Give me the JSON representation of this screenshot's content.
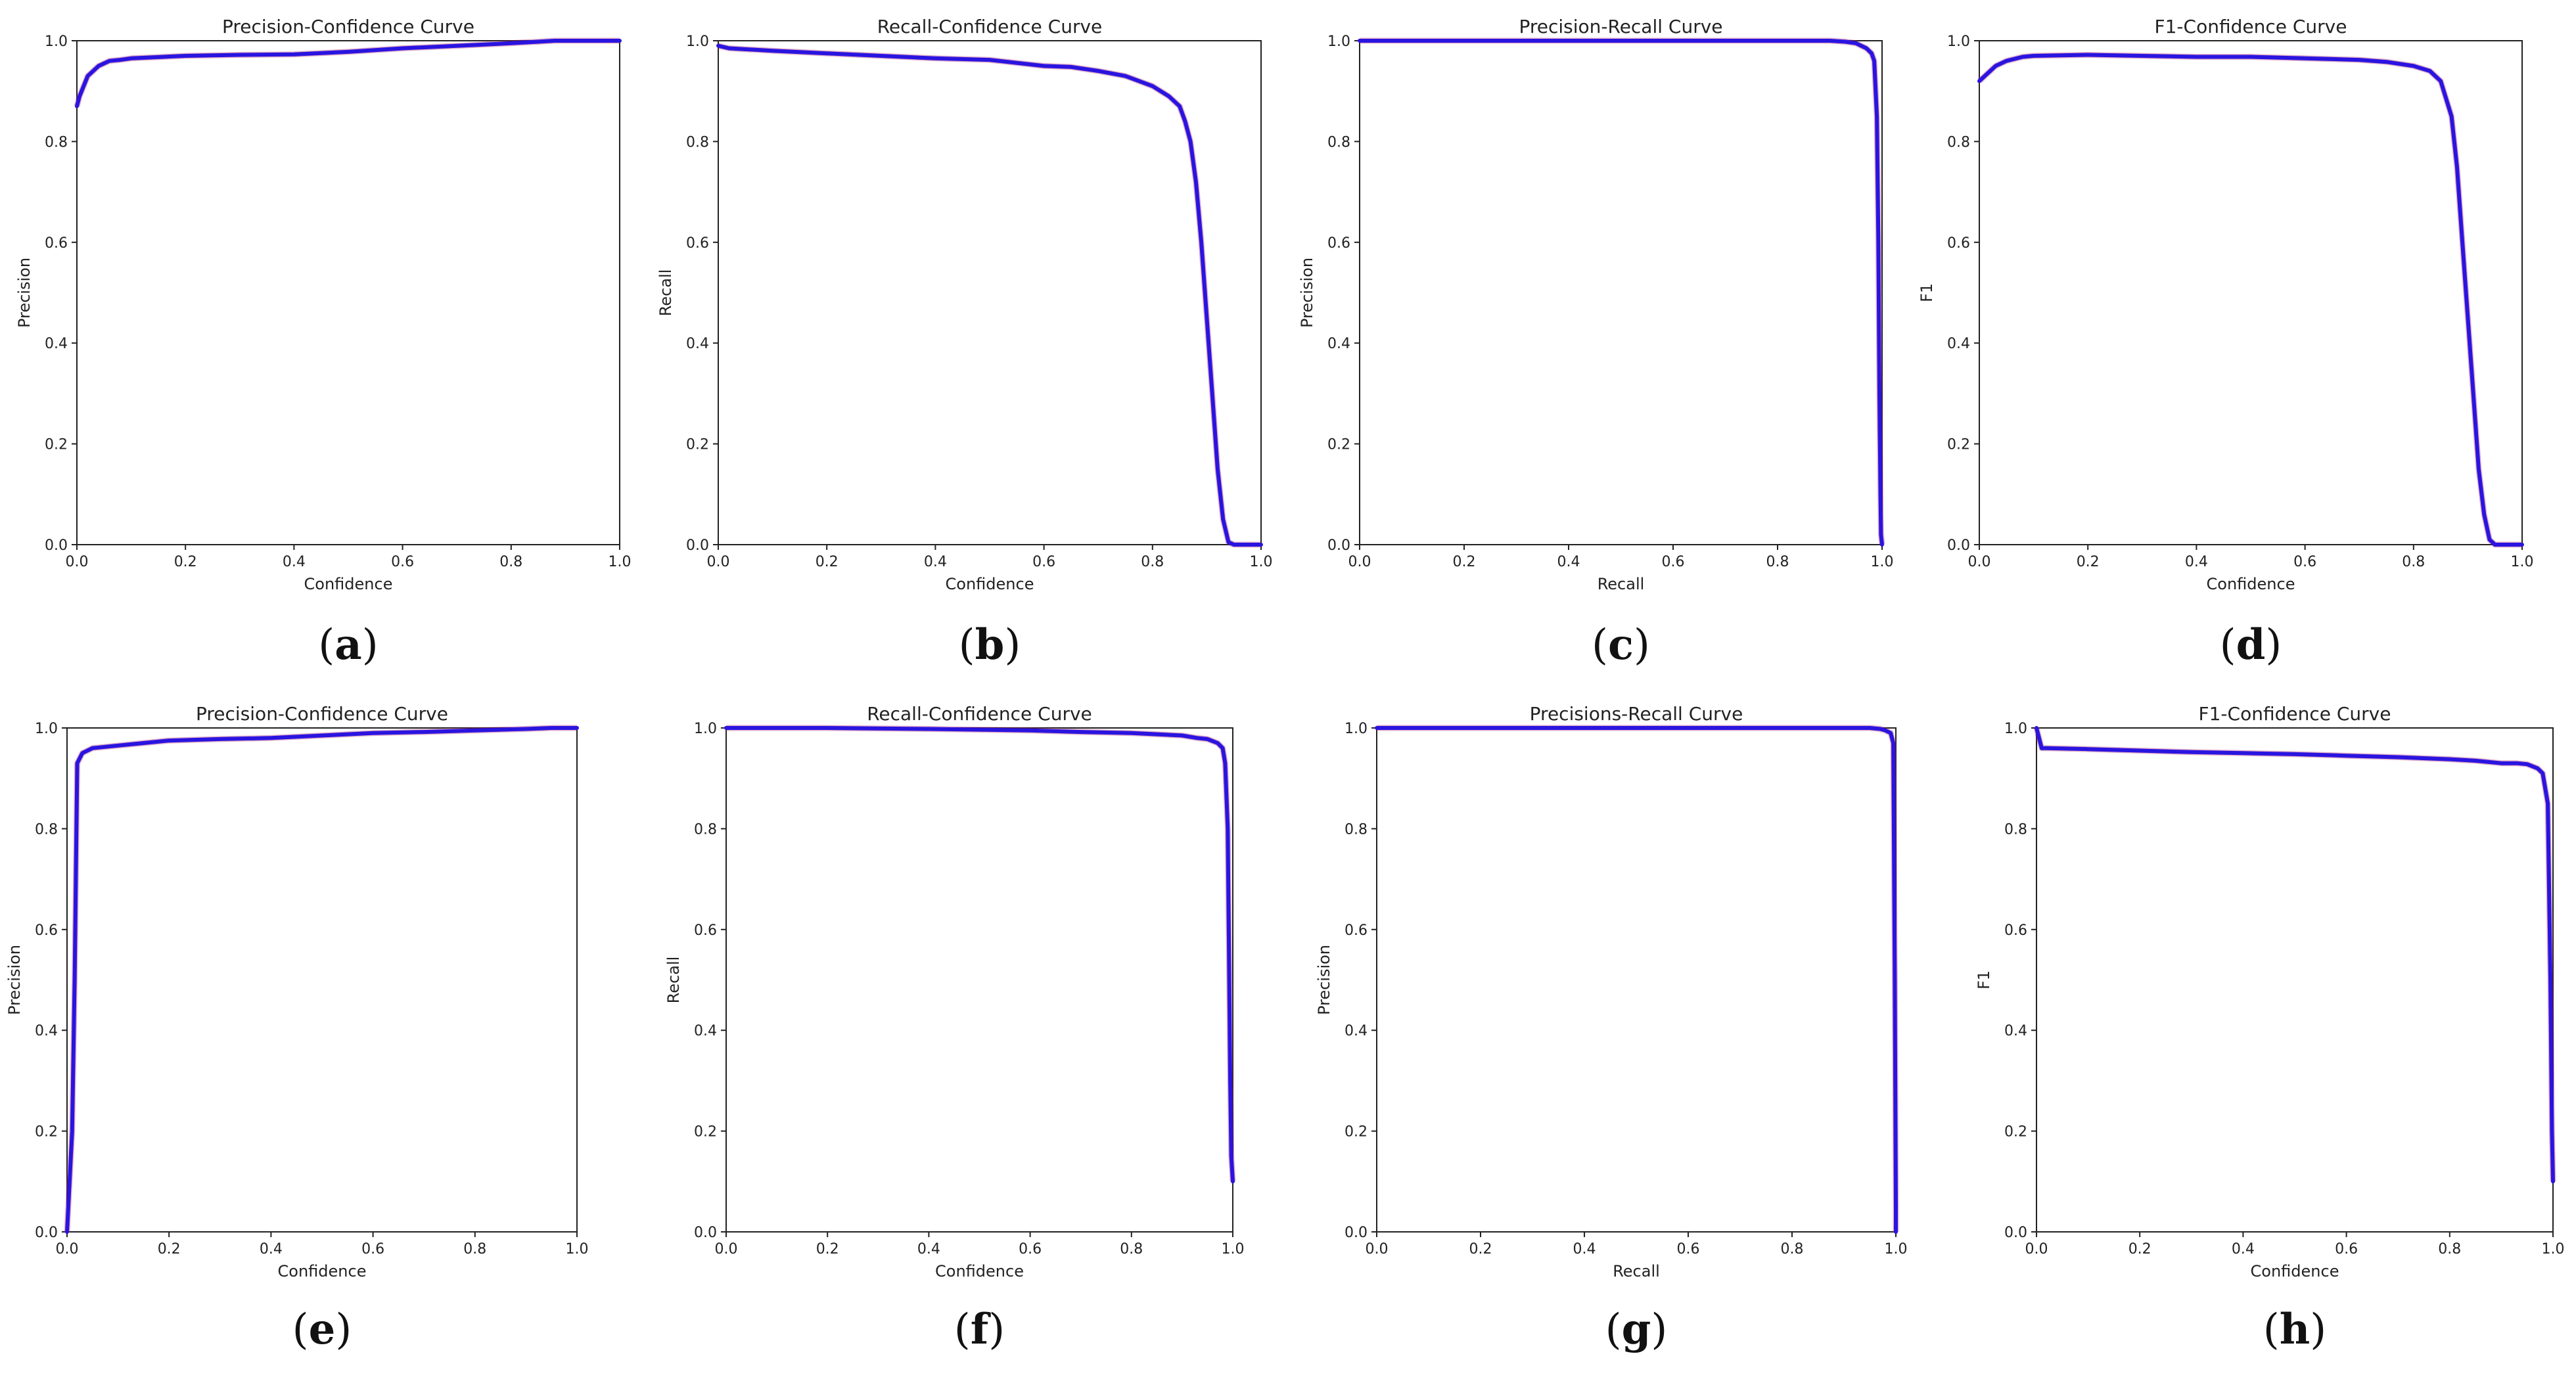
{
  "figure": {
    "panels": [
      {
        "id": "a",
        "label": "(a)",
        "letter": "a"
      },
      {
        "id": "b",
        "label": "(b)",
        "letter": "b"
      },
      {
        "id": "c",
        "label": "(c)",
        "letter": "c"
      },
      {
        "id": "d",
        "label": "(d)",
        "letter": "d"
      },
      {
        "id": "e",
        "label": "(e)",
        "letter": "e"
      },
      {
        "id": "f",
        "label": "(f)",
        "letter": "f"
      },
      {
        "id": "g",
        "label": "(g)",
        "letter": "g"
      },
      {
        "id": "h",
        "label": "(h)",
        "letter": "h"
      }
    ]
  },
  "colors": {
    "curve": "#2a14e0",
    "curve_edge": "#b0206a",
    "axis": "#222222"
  },
  "chart_data": [
    {
      "type": "line",
      "title": "Precision-Confidence Curve",
      "xlabel": "Confidence",
      "ylabel": "Precision",
      "xlim": [
        0,
        1
      ],
      "ylim": [
        0,
        1
      ],
      "xticks": [
        "0.0",
        "0.2",
        "0.4",
        "0.6",
        "0.8",
        "1.0"
      ],
      "yticks": [
        "0.0",
        "0.2",
        "0.4",
        "0.6",
        "0.8",
        "1.0"
      ],
      "grid": false,
      "series": [
        {
          "x": [
            0,
            0.005,
            0.02,
            0.04,
            0.06,
            0.08,
            0.1,
            0.2,
            0.3,
            0.4,
            0.5,
            0.6,
            0.7,
            0.8,
            0.85,
            0.88,
            0.9,
            1.0
          ],
          "y": [
            0.87,
            0.89,
            0.93,
            0.95,
            0.96,
            0.962,
            0.965,
            0.97,
            0.972,
            0.973,
            0.978,
            0.985,
            0.99,
            0.995,
            0.998,
            1.0,
            1.0,
            1.0
          ]
        }
      ]
    },
    {
      "type": "line",
      "title": "Recall-Confidence Curve",
      "xlabel": "Confidence",
      "ylabel": "Recall",
      "xlim": [
        0,
        1
      ],
      "ylim": [
        0,
        1
      ],
      "xticks": [
        "0.0",
        "0.2",
        "0.4",
        "0.6",
        "0.8",
        "1.0"
      ],
      "yticks": [
        "0.0",
        "0.2",
        "0.4",
        "0.6",
        "0.8",
        "1.0"
      ],
      "grid": false,
      "series": [
        {
          "x": [
            0,
            0.02,
            0.1,
            0.2,
            0.3,
            0.4,
            0.5,
            0.6,
            0.65,
            0.7,
            0.75,
            0.8,
            0.83,
            0.85,
            0.86,
            0.87,
            0.88,
            0.89,
            0.9,
            0.91,
            0.92,
            0.93,
            0.94,
            0.95,
            1.0
          ],
          "y": [
            0.99,
            0.985,
            0.98,
            0.975,
            0.97,
            0.965,
            0.962,
            0.95,
            0.948,
            0.94,
            0.93,
            0.91,
            0.89,
            0.87,
            0.84,
            0.8,
            0.72,
            0.6,
            0.45,
            0.3,
            0.15,
            0.05,
            0.005,
            0.0,
            0.0
          ]
        }
      ]
    },
    {
      "type": "line",
      "title": "Precision-Recall Curve",
      "xlabel": "Recall",
      "ylabel": "Precision",
      "xlim": [
        0,
        1
      ],
      "ylim": [
        0,
        1
      ],
      "xticks": [
        "0.0",
        "0.2",
        "0.4",
        "0.6",
        "0.8",
        "1.0"
      ],
      "yticks": [
        "0.0",
        "0.2",
        "0.4",
        "0.6",
        "0.8",
        "1.0"
      ],
      "grid": false,
      "series": [
        {
          "x": [
            0,
            0.2,
            0.4,
            0.6,
            0.8,
            0.9,
            0.93,
            0.95,
            0.97,
            0.98,
            0.985,
            0.99,
            0.993,
            0.995,
            0.997,
            0.998,
            1.0
          ],
          "y": [
            1.0,
            1.0,
            1.0,
            1.0,
            1.0,
            1.0,
            0.998,
            0.995,
            0.985,
            0.975,
            0.96,
            0.85,
            0.6,
            0.3,
            0.1,
            0.02,
            0.0
          ]
        }
      ]
    },
    {
      "type": "line",
      "title": "F1-Confidence Curve",
      "xlabel": "Confidence",
      "ylabel": "F1",
      "xlim": [
        0,
        1
      ],
      "ylim": [
        0,
        1
      ],
      "xticks": [
        "0.0",
        "0.2",
        "0.4",
        "0.6",
        "0.8",
        "1.0"
      ],
      "yticks": [
        "0.0",
        "0.2",
        "0.4",
        "0.6",
        "0.8",
        "1.0"
      ],
      "grid": false,
      "series": [
        {
          "x": [
            0,
            0.01,
            0.03,
            0.05,
            0.08,
            0.1,
            0.2,
            0.3,
            0.4,
            0.5,
            0.6,
            0.7,
            0.75,
            0.8,
            0.83,
            0.85,
            0.87,
            0.88,
            0.89,
            0.9,
            0.91,
            0.92,
            0.93,
            0.94,
            0.95,
            1.0
          ],
          "y": [
            0.92,
            0.93,
            0.95,
            0.96,
            0.968,
            0.97,
            0.972,
            0.97,
            0.968,
            0.968,
            0.965,
            0.962,
            0.958,
            0.95,
            0.94,
            0.92,
            0.85,
            0.75,
            0.6,
            0.45,
            0.3,
            0.15,
            0.06,
            0.01,
            0.0,
            0.0
          ]
        }
      ]
    },
    {
      "type": "line",
      "title": "Precision-Confidence Curve",
      "xlabel": "Confidence",
      "ylabel": "Precision",
      "xlim": [
        0,
        1
      ],
      "ylim": [
        0,
        1
      ],
      "xticks": [
        "0.0",
        "0.2",
        "0.4",
        "0.6",
        "0.8",
        "1.0"
      ],
      "yticks": [
        "0.0",
        "0.2",
        "0.4",
        "0.6",
        "0.8",
        "1.0"
      ],
      "grid": false,
      "series": [
        {
          "x": [
            0,
            0.005,
            0.01,
            0.015,
            0.02,
            0.03,
            0.05,
            0.1,
            0.15,
            0.2,
            0.3,
            0.4,
            0.5,
            0.6,
            0.7,
            0.8,
            0.9,
            0.95,
            1.0
          ],
          "y": [
            0.0,
            0.1,
            0.2,
            0.5,
            0.93,
            0.95,
            0.96,
            0.965,
            0.97,
            0.975,
            0.978,
            0.98,
            0.985,
            0.99,
            0.992,
            0.995,
            0.998,
            1.0,
            1.0
          ]
        }
      ]
    },
    {
      "type": "line",
      "title": "Recall-Confidence Curve",
      "xlabel": "Confidence",
      "ylabel": "Recall",
      "xlim": [
        0,
        1
      ],
      "ylim": [
        0,
        1
      ],
      "xticks": [
        "0.0",
        "0.2",
        "0.4",
        "0.6",
        "0.8",
        "1.0"
      ],
      "yticks": [
        "0.0",
        "0.2",
        "0.4",
        "0.6",
        "0.8",
        "1.0"
      ],
      "grid": false,
      "series": [
        {
          "x": [
            0,
            0.2,
            0.4,
            0.6,
            0.7,
            0.8,
            0.9,
            0.93,
            0.95,
            0.97,
            0.98,
            0.985,
            0.99,
            0.993,
            0.995,
            0.997,
            1.0
          ],
          "y": [
            1.0,
            1.0,
            0.998,
            0.995,
            0.992,
            0.99,
            0.985,
            0.98,
            0.978,
            0.97,
            0.96,
            0.93,
            0.8,
            0.5,
            0.3,
            0.15,
            0.1
          ]
        }
      ]
    },
    {
      "type": "line",
      "title": "Precisions-Recall Curve",
      "xlabel": "Recall",
      "ylabel": "Precision",
      "xlim": [
        0,
        1
      ],
      "ylim": [
        0,
        1
      ],
      "xticks": [
        "0.0",
        "0.2",
        "0.4",
        "0.6",
        "0.8",
        "1.0"
      ],
      "yticks": [
        "0.0",
        "0.2",
        "0.4",
        "0.6",
        "0.8",
        "1.0"
      ],
      "grid": false,
      "series": [
        {
          "x": [
            0,
            0.2,
            0.4,
            0.6,
            0.8,
            0.9,
            0.95,
            0.97,
            0.98,
            0.99,
            0.995,
            0.998,
            1.0,
            1.0
          ],
          "y": [
            1.0,
            1.0,
            1.0,
            1.0,
            1.0,
            1.0,
            1.0,
            0.998,
            0.995,
            0.99,
            0.97,
            0.5,
            0.05,
            0.0
          ]
        }
      ]
    },
    {
      "type": "line",
      "title": "F1-Confidence Curve",
      "xlabel": "Confidence",
      "ylabel": "F1",
      "xlim": [
        0,
        1
      ],
      "ylim": [
        0,
        1
      ],
      "xticks": [
        "0.0",
        "0.2",
        "0.4",
        "0.6",
        "0.8",
        "1.0"
      ],
      "yticks": [
        "0.0",
        "0.2",
        "0.4",
        "0.6",
        "0.8",
        "1.0"
      ],
      "grid": false,
      "series": [
        {
          "x": [
            0,
            0.005,
            0.01,
            0.02,
            0.1,
            0.2,
            0.3,
            0.4,
            0.5,
            0.6,
            0.7,
            0.8,
            0.85,
            0.9,
            0.93,
            0.95,
            0.97,
            0.98,
            0.99,
            0.995,
            0.998,
            1.0
          ],
          "y": [
            1.0,
            0.98,
            0.96,
            0.96,
            0.958,
            0.955,
            0.952,
            0.95,
            0.948,
            0.945,
            0.942,
            0.938,
            0.935,
            0.93,
            0.93,
            0.928,
            0.92,
            0.91,
            0.85,
            0.5,
            0.2,
            0.1
          ]
        }
      ]
    }
  ]
}
